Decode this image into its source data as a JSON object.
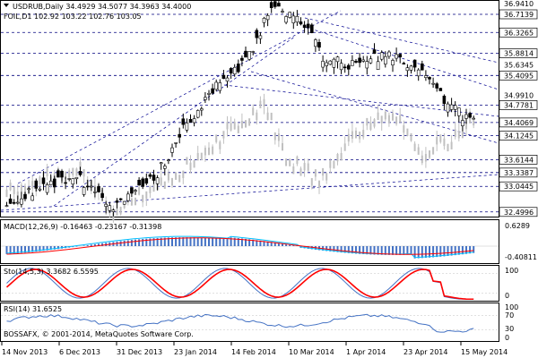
{
  "main_chart": {
    "symbol_line": "USDRUB,Daily  34.4929 34.5077 34.3963 34.4000",
    "overlay_line": "FOIL,D1 102.92 103.22 102.76 103.05",
    "price_levels": [
      {
        "label": "36.9410",
        "value": 36.941,
        "boxed": false
      },
      {
        "label": "36.7139",
        "value": 36.7139,
        "boxed": true
      },
      {
        "label": "36.3265",
        "value": 36.3265,
        "boxed": true
      },
      {
        "label": "35.8814",
        "value": 35.8814,
        "boxed": true
      },
      {
        "label": "35.6345",
        "value": 35.6345,
        "boxed": false
      },
      {
        "label": "35.4095",
        "value": 35.4095,
        "boxed": true
      },
      {
        "label": "34.9910",
        "value": 34.991,
        "boxed": false
      },
      {
        "label": "34.7781",
        "value": 34.7781,
        "boxed": true
      },
      {
        "label": "34.4069",
        "value": 34.4069,
        "boxed": true
      },
      {
        "label": "34.1245",
        "value": 34.1245,
        "boxed": true
      },
      {
        "label": "33.6144",
        "value": 33.6144,
        "boxed": true
      },
      {
        "label": "33.3387",
        "value": 33.3387,
        "boxed": true
      },
      {
        "label": "33.0445",
        "value": 33.0445,
        "boxed": true
      },
      {
        "label": "32.4996",
        "value": 32.4996,
        "boxed": true
      }
    ],
    "price_range": [
      32.4,
      37.0
    ],
    "candle_up_color": "#000000",
    "candle_down_color": "#000000",
    "overlay_color": "#c0c0c0",
    "level_color": "#00007f"
  },
  "macd": {
    "label": "MACD(12,26,9)  -0.16463 -0.23167 -0.31398",
    "scale_top": "0.6289",
    "scale_bottom": "-0.40811",
    "histogram_color": "#4472c4",
    "signal_color": "#ff0000",
    "line_color": "#00bfff"
  },
  "stoch": {
    "label": "Sto(14,5,3) 3.3682 6.5595",
    "scale_top": "100",
    "scale_bottom": "0",
    "main_color": "#4472c4",
    "signal_color": "#ff0000"
  },
  "rsi": {
    "label": "RSI(14) 31.6525",
    "scale_top": "100",
    "level_70": "70",
    "level_30": "30",
    "scale_bottom": "0",
    "line_color": "#4472c4"
  },
  "watermark": "BOSSAFX, © 2001-2014, MetaQuotes Software Corp.",
  "date_labels": [
    "14 Nov 2013",
    "6 Dec 2013",
    "31 Dec 2013",
    "23 Jan 2014",
    "14 Feb 2014",
    "10 Mar 2014",
    "1 Apr 2014",
    "23 Apr 2014",
    "15 May 2014"
  ]
}
